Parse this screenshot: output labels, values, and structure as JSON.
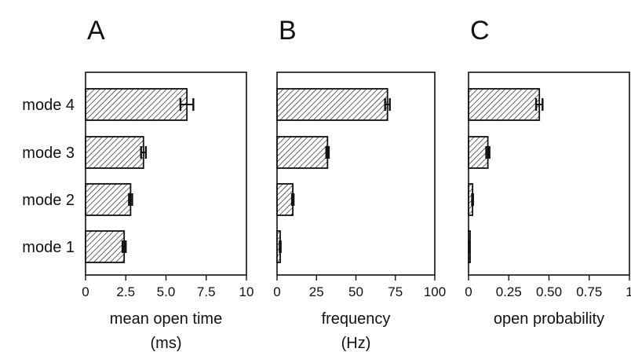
{
  "chart_data": [
    {
      "type": "bar",
      "panel": "A",
      "categories": [
        "mode 4",
        "mode 3",
        "mode 2",
        "mode 1"
      ],
      "values": [
        6.3,
        3.6,
        2.8,
        2.4
      ],
      "errors": [
        0.4,
        0.15,
        0.1,
        0.1
      ],
      "xlabel": "mean open time",
      "xunit": "(ms)",
      "xlim": [
        0,
        10
      ],
      "ticks": [
        "0",
        "2.5",
        "5.0",
        "7.5",
        "10"
      ],
      "tick_values": [
        0,
        2.5,
        5,
        7.5,
        10
      ]
    },
    {
      "type": "bar",
      "panel": "B",
      "categories": [
        "mode 4",
        "mode 3",
        "mode 2",
        "mode 1"
      ],
      "values": [
        70,
        32,
        10,
        2
      ],
      "errors": [
        1.5,
        0.8,
        0.5,
        0.3
      ],
      "xlabel": "frequency",
      "xunit": "(Hz)",
      "xlim": [
        0,
        100
      ],
      "ticks": [
        "0",
        "25",
        "50",
        "75",
        "100"
      ],
      "tick_values": [
        0,
        25,
        50,
        75,
        100
      ]
    },
    {
      "type": "bar",
      "panel": "C",
      "categories": [
        "mode 4",
        "mode 3",
        "mode 2",
        "mode 1"
      ],
      "values": [
        0.44,
        0.12,
        0.025,
        0.004
      ],
      "errors": [
        0.02,
        0.01,
        0.003,
        0.001
      ],
      "xlabel": "open probability",
      "xunit": "",
      "xlim": [
        0,
        1
      ],
      "ticks": [
        "0",
        "0.25",
        "0.50",
        "0.75",
        "1"
      ],
      "tick_values": [
        0,
        0.25,
        0.5,
        0.75,
        1
      ]
    }
  ],
  "colors": {
    "bar_fill": "#ffffff",
    "hatch": "#222222",
    "axis": "#111111"
  }
}
